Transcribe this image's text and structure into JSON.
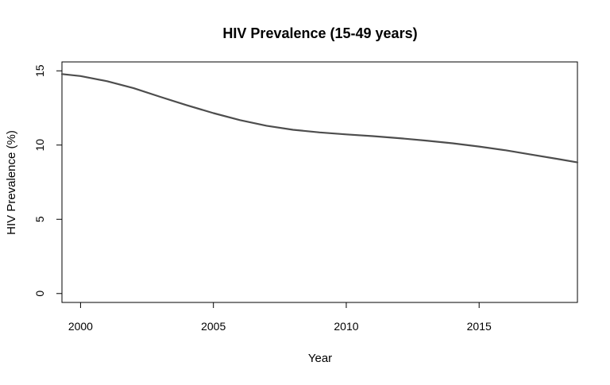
{
  "chart_data": {
    "type": "line",
    "title": "HIV Prevalence (15-49 years)",
    "xlabel": "Year",
    "ylabel": "HIV Prevalence (%)",
    "xlim": [
      1999.3,
      2018.7
    ],
    "ylim": [
      -0.6,
      15.6
    ],
    "xticks": [
      2000,
      2005,
      2010,
      2015
    ],
    "yticks": [
      0,
      5,
      10,
      15
    ],
    "grid": false,
    "legend": "none",
    "line_color": "#4d4d4d",
    "series": [
      {
        "x": [
          1999.3,
          2000,
          2001,
          2002,
          2003,
          2004,
          2005,
          2006,
          2007,
          2008,
          2009,
          2010,
          2011,
          2012,
          2013,
          2014,
          2015,
          2016,
          2017,
          2018,
          2018.7
        ],
        "values": [
          14.78,
          14.65,
          14.3,
          13.83,
          13.25,
          12.68,
          12.15,
          11.68,
          11.3,
          11.03,
          10.85,
          10.72,
          10.6,
          10.46,
          10.3,
          10.12,
          9.9,
          9.65,
          9.35,
          9.05,
          8.83
        ]
      }
    ]
  }
}
